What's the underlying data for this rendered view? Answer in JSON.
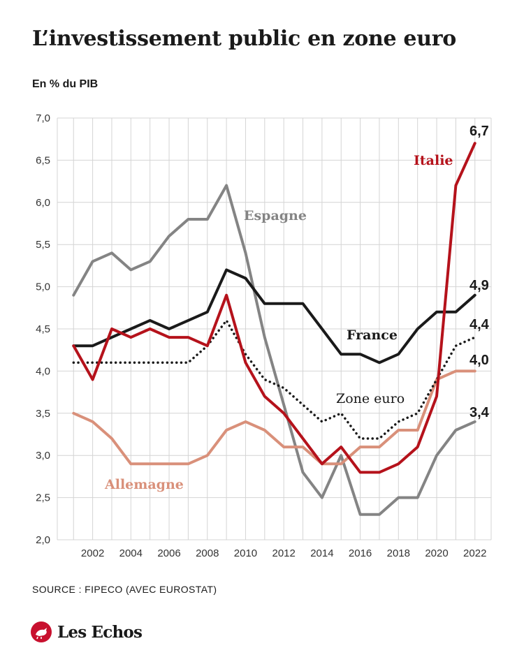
{
  "header": {
    "title": "L’investissement public en zone euro",
    "subtitle": "En % du PIB"
  },
  "footer": {
    "source": "SOURCE :  FIPECO (AVEC EUROSTAT)",
    "brand": "Les Echos"
  },
  "colors": {
    "italie": "#b5121b",
    "espagne": "#848484",
    "france": "#1a1a1a",
    "zone_euro": "#1a1a1a",
    "allemagne": "#d9907a",
    "grid": "#d4d4d4",
    "brand": "#c8102e"
  },
  "chart_data": {
    "type": "line",
    "title": "L’investissement public en zone euro",
    "ylabel": "En % du PIB",
    "xlabel": "",
    "ylim": [
      2.0,
      7.0
    ],
    "xlim": [
      2001,
      2022
    ],
    "grid": true,
    "x": [
      2001,
      2002,
      2003,
      2004,
      2005,
      2006,
      2007,
      2008,
      2009,
      2010,
      2011,
      2012,
      2013,
      2014,
      2015,
      2016,
      2017,
      2018,
      2019,
      2020,
      2021,
      2022
    ],
    "x_tick_labels": [
      "2002",
      "2004",
      "2006",
      "2008",
      "2010",
      "2012",
      "2014",
      "2016",
      "2018",
      "2020",
      "2022"
    ],
    "y_tick_labels": [
      "2,0",
      "2,5",
      "3,0",
      "3,5",
      "4,0",
      "4,5",
      "5,0",
      "5,5",
      "6,0",
      "6,5",
      "7,0"
    ],
    "series": [
      {
        "key": "espagne",
        "name": "Espagne",
        "values": [
          4.9,
          5.3,
          5.4,
          5.2,
          5.3,
          5.6,
          5.8,
          5.8,
          6.2,
          5.4,
          4.4,
          3.6,
          2.8,
          2.5,
          3.0,
          2.3,
          2.3,
          2.5,
          2.5,
          3.0,
          3.3,
          3.4
        ],
        "end_label": "3,4"
      },
      {
        "key": "allemagne",
        "name": "Allemagne",
        "values": [
          3.5,
          3.4,
          3.2,
          2.9,
          2.9,
          2.9,
          2.9,
          3.0,
          3.3,
          3.4,
          3.3,
          3.1,
          3.1,
          2.9,
          2.9,
          3.1,
          3.1,
          3.3,
          3.3,
          3.9,
          4.0,
          4.0
        ],
        "end_label": "4,0"
      },
      {
        "key": "zone_euro",
        "name": "Zone euro",
        "values": [
          4.1,
          4.1,
          4.1,
          4.1,
          4.1,
          4.1,
          4.1,
          4.3,
          4.6,
          4.2,
          3.9,
          3.8,
          3.6,
          3.4,
          3.5,
          3.2,
          3.2,
          3.4,
          3.5,
          3.9,
          4.3,
          4.4
        ],
        "end_label": "4,4"
      },
      {
        "key": "france",
        "name": "France",
        "values": [
          4.3,
          4.3,
          4.4,
          4.5,
          4.6,
          4.5,
          4.6,
          4.7,
          5.2,
          5.1,
          4.8,
          4.8,
          4.8,
          4.5,
          4.2,
          4.2,
          4.1,
          4.2,
          4.5,
          4.7,
          4.7,
          4.9
        ],
        "end_label": "4,9"
      },
      {
        "key": "italie",
        "name": "Italie",
        "values": [
          4.3,
          3.9,
          4.5,
          4.4,
          4.5,
          4.4,
          4.4,
          4.3,
          4.9,
          4.1,
          3.7,
          3.5,
          3.2,
          2.9,
          3.1,
          2.8,
          2.8,
          2.9,
          3.1,
          3.7,
          6.2,
          6.7
        ],
        "end_label": "6,7"
      }
    ]
  }
}
